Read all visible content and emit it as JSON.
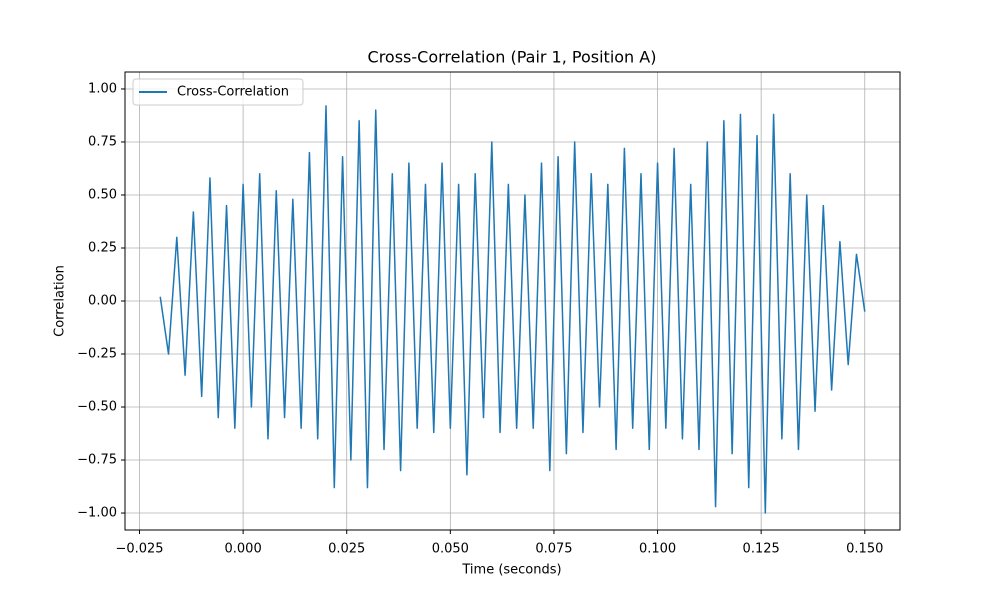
{
  "chart_data": {
    "type": "line",
    "title": "Cross-Correlation (Pair 1, Position A)",
    "x_label": "Time (seconds)",
    "y_label": "Correlation",
    "x": [
      -0.02,
      -0.018,
      -0.016,
      -0.014,
      -0.012,
      -0.01,
      -0.008,
      -0.006,
      -0.004,
      -0.002,
      0.0,
      0.002,
      0.004,
      0.006,
      0.008,
      0.01,
      0.012,
      0.014,
      0.016,
      0.018,
      0.02,
      0.022,
      0.024,
      0.026,
      0.028,
      0.03,
      0.032,
      0.034,
      0.036,
      0.038,
      0.04,
      0.042,
      0.044,
      0.046,
      0.048,
      0.05,
      0.052,
      0.054,
      0.056,
      0.058,
      0.06,
      0.062,
      0.064,
      0.066,
      0.068,
      0.07,
      0.072,
      0.074,
      0.076,
      0.078,
      0.08,
      0.082,
      0.084,
      0.086,
      0.088,
      0.09,
      0.092,
      0.094,
      0.096,
      0.098,
      0.1,
      0.102,
      0.104,
      0.106,
      0.108,
      0.11,
      0.112,
      0.114,
      0.116,
      0.118,
      0.12,
      0.122,
      0.124,
      0.126,
      0.128,
      0.13,
      0.132,
      0.134,
      0.136,
      0.138,
      0.14,
      0.142,
      0.144,
      0.146,
      0.148,
      0.15
    ],
    "series": [
      {
        "name": "Cross-Correlation",
        "color": "#1f77b4",
        "values": [
          0.02,
          -0.25,
          0.3,
          -0.35,
          0.42,
          -0.45,
          0.58,
          -0.55,
          0.45,
          -0.6,
          0.55,
          -0.5,
          0.6,
          -0.65,
          0.52,
          -0.55,
          0.48,
          -0.6,
          0.7,
          -0.65,
          0.92,
          -0.88,
          0.68,
          -0.75,
          0.85,
          -0.88,
          0.9,
          -0.7,
          0.6,
          -0.8,
          0.65,
          -0.6,
          0.55,
          -0.62,
          0.65,
          -0.6,
          0.55,
          -0.82,
          0.6,
          -0.55,
          0.75,
          -0.62,
          0.55,
          -0.6,
          0.5,
          -0.6,
          0.65,
          -0.8,
          0.68,
          -0.72,
          0.75,
          -0.62,
          0.6,
          -0.5,
          0.55,
          -0.7,
          0.72,
          -0.6,
          0.6,
          -0.7,
          0.65,
          -0.6,
          0.72,
          -0.65,
          0.55,
          -0.7,
          0.75,
          -0.97,
          0.85,
          -0.72,
          0.88,
          -0.88,
          0.78,
          -1.0,
          0.88,
          -0.65,
          0.6,
          -0.7,
          0.5,
          -0.52,
          0.45,
          -0.42,
          0.28,
          -0.3,
          0.22,
          -0.05
        ]
      }
    ],
    "xlim": [
      -0.0285,
      0.1585
    ],
    "ylim": [
      -1.08,
      1.08
    ],
    "xticks": [
      {
        "value": -0.025,
        "label": "−0.025"
      },
      {
        "value": 0,
        "label": "0.000"
      },
      {
        "value": 0.025,
        "label": "0.025"
      },
      {
        "value": 0.05,
        "label": "0.050"
      },
      {
        "value": 0.075,
        "label": "0.075"
      },
      {
        "value": 0.1,
        "label": "0.100"
      },
      {
        "value": 0.125,
        "label": "0.125"
      },
      {
        "value": 0.15,
        "label": "0.150"
      }
    ],
    "yticks": [
      {
        "value": -1,
        "label": "−1.00"
      },
      {
        "value": -0.75,
        "label": "−0.75"
      },
      {
        "value": -0.5,
        "label": "−0.50"
      },
      {
        "value": -0.25,
        "label": "−0.25"
      },
      {
        "value": 0,
        "label": "0.00"
      },
      {
        "value": 0.25,
        "label": "0.25"
      },
      {
        "value": 0.5,
        "label": "0.50"
      },
      {
        "value": 0.75,
        "label": "0.75"
      },
      {
        "value": 1,
        "label": "1.00"
      }
    ],
    "grid": true,
    "legend": "upper left"
  }
}
